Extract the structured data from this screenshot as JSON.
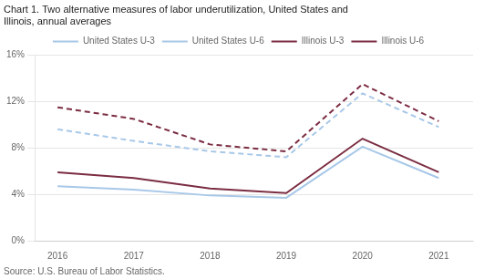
{
  "chart_data": {
    "type": "line",
    "title": [
      "Chart 1. Two alternative measures of labor underutilization, United States and",
      "Illinois, annual averages"
    ],
    "annotations": [
      "Source: U.S. Bureau of Labor Statistics."
    ],
    "x": [
      2016,
      2017,
      2018,
      2019,
      2020,
      2021
    ],
    "series": [
      {
        "name": "United States U-3",
        "color": "#a8c8e8",
        "line_style": "solid",
        "values": [
          4.7,
          4.4,
          3.9,
          3.7,
          8.1,
          5.4
        ]
      },
      {
        "name": "United States U-6",
        "color": "#a8c8e8",
        "line_style": "dashed",
        "values": [
          9.6,
          8.6,
          7.7,
          7.2,
          12.7,
          9.8
        ]
      },
      {
        "name": "Illinois U-3",
        "color": "#7b2d42",
        "line_style": "solid",
        "values": [
          5.9,
          5.4,
          4.5,
          4.1,
          8.8,
          5.9
        ]
      },
      {
        "name": "Illinois U-6",
        "color": "#7b2d42",
        "line_style": "dashed",
        "values": [
          11.5,
          10.5,
          8.3,
          7.7,
          13.5,
          10.3
        ]
      }
    ],
    "xlim": [
      2015.7,
      2021.45
    ],
    "xticks": [
      2016,
      2017,
      2018,
      2019,
      2020,
      2021
    ],
    "ylim": [
      0,
      16
    ],
    "yticks": [
      {
        "value": 0,
        "label": "0%"
      },
      {
        "value": 4,
        "label": "4%"
      },
      {
        "value": 8,
        "label": "8%"
      },
      {
        "value": 12,
        "label": "12%"
      },
      {
        "value": 16,
        "label": "16%"
      }
    ],
    "grid": "y",
    "legend": "top"
  }
}
